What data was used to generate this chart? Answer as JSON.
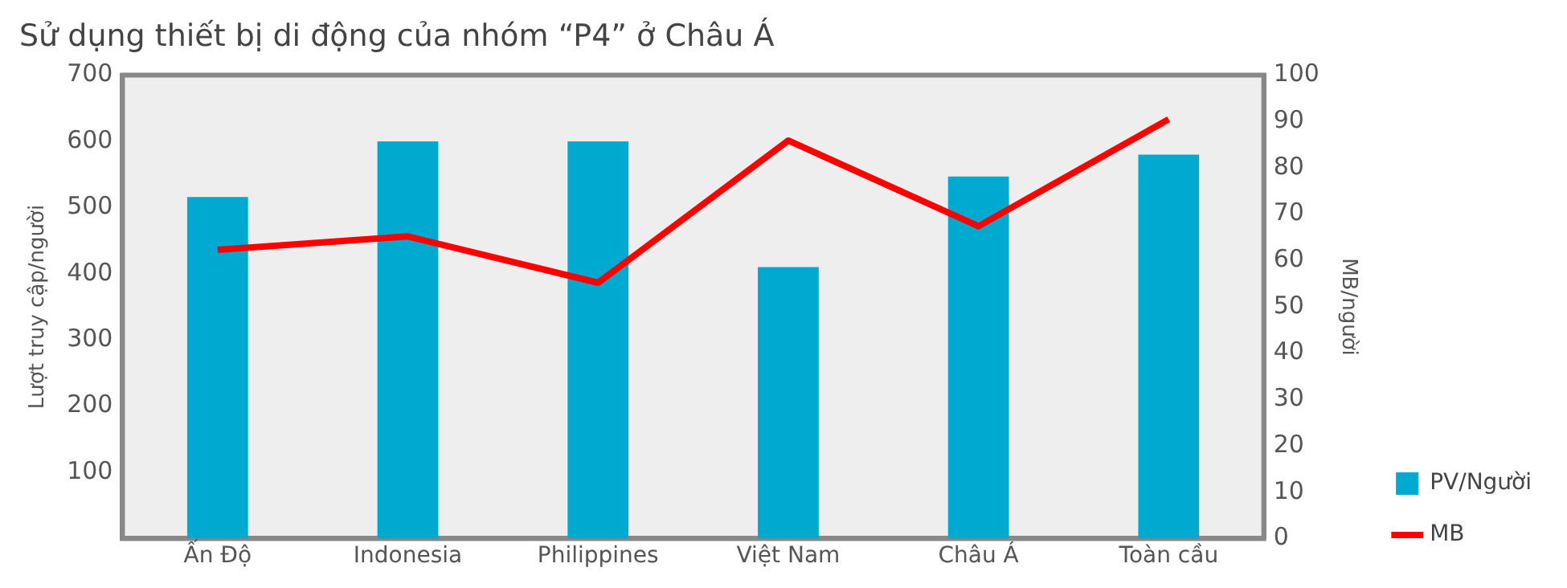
{
  "chart_data": {
    "type": "bar",
    "title": "Sử dụng thiết bị di động của nhóm “P4” ở Châu Á",
    "ylabel": "Lượt truy cập/người",
    "y2label": "MB/người",
    "categories": [
      "Ấn Độ",
      "Indonesia",
      "Philippines",
      "Việt Nam",
      "Châu Á",
      "Toàn cầu"
    ],
    "series": [
      {
        "name": "PV/Người",
        "color": "#00a9d0",
        "values": [
          516,
          600,
          600,
          410,
          547,
          580
        ]
      },
      {
        "name": "MB",
        "type": "line",
        "axis": "y2",
        "color": "#ff0000",
        "values": [
          62.3,
          65.2,
          55.2,
          85.9,
          67.4,
          90.5
        ]
      }
    ],
    "ylim": [
      0,
      700
    ],
    "yticks": [
      100,
      200,
      300,
      400,
      500,
      600,
      700
    ],
    "y2lim": [
      0,
      100
    ],
    "y2ticks": [
      0,
      10,
      20,
      30,
      40,
      50,
      60,
      70,
      80,
      90,
      100
    ],
    "legend": "right",
    "marker": "none"
  }
}
